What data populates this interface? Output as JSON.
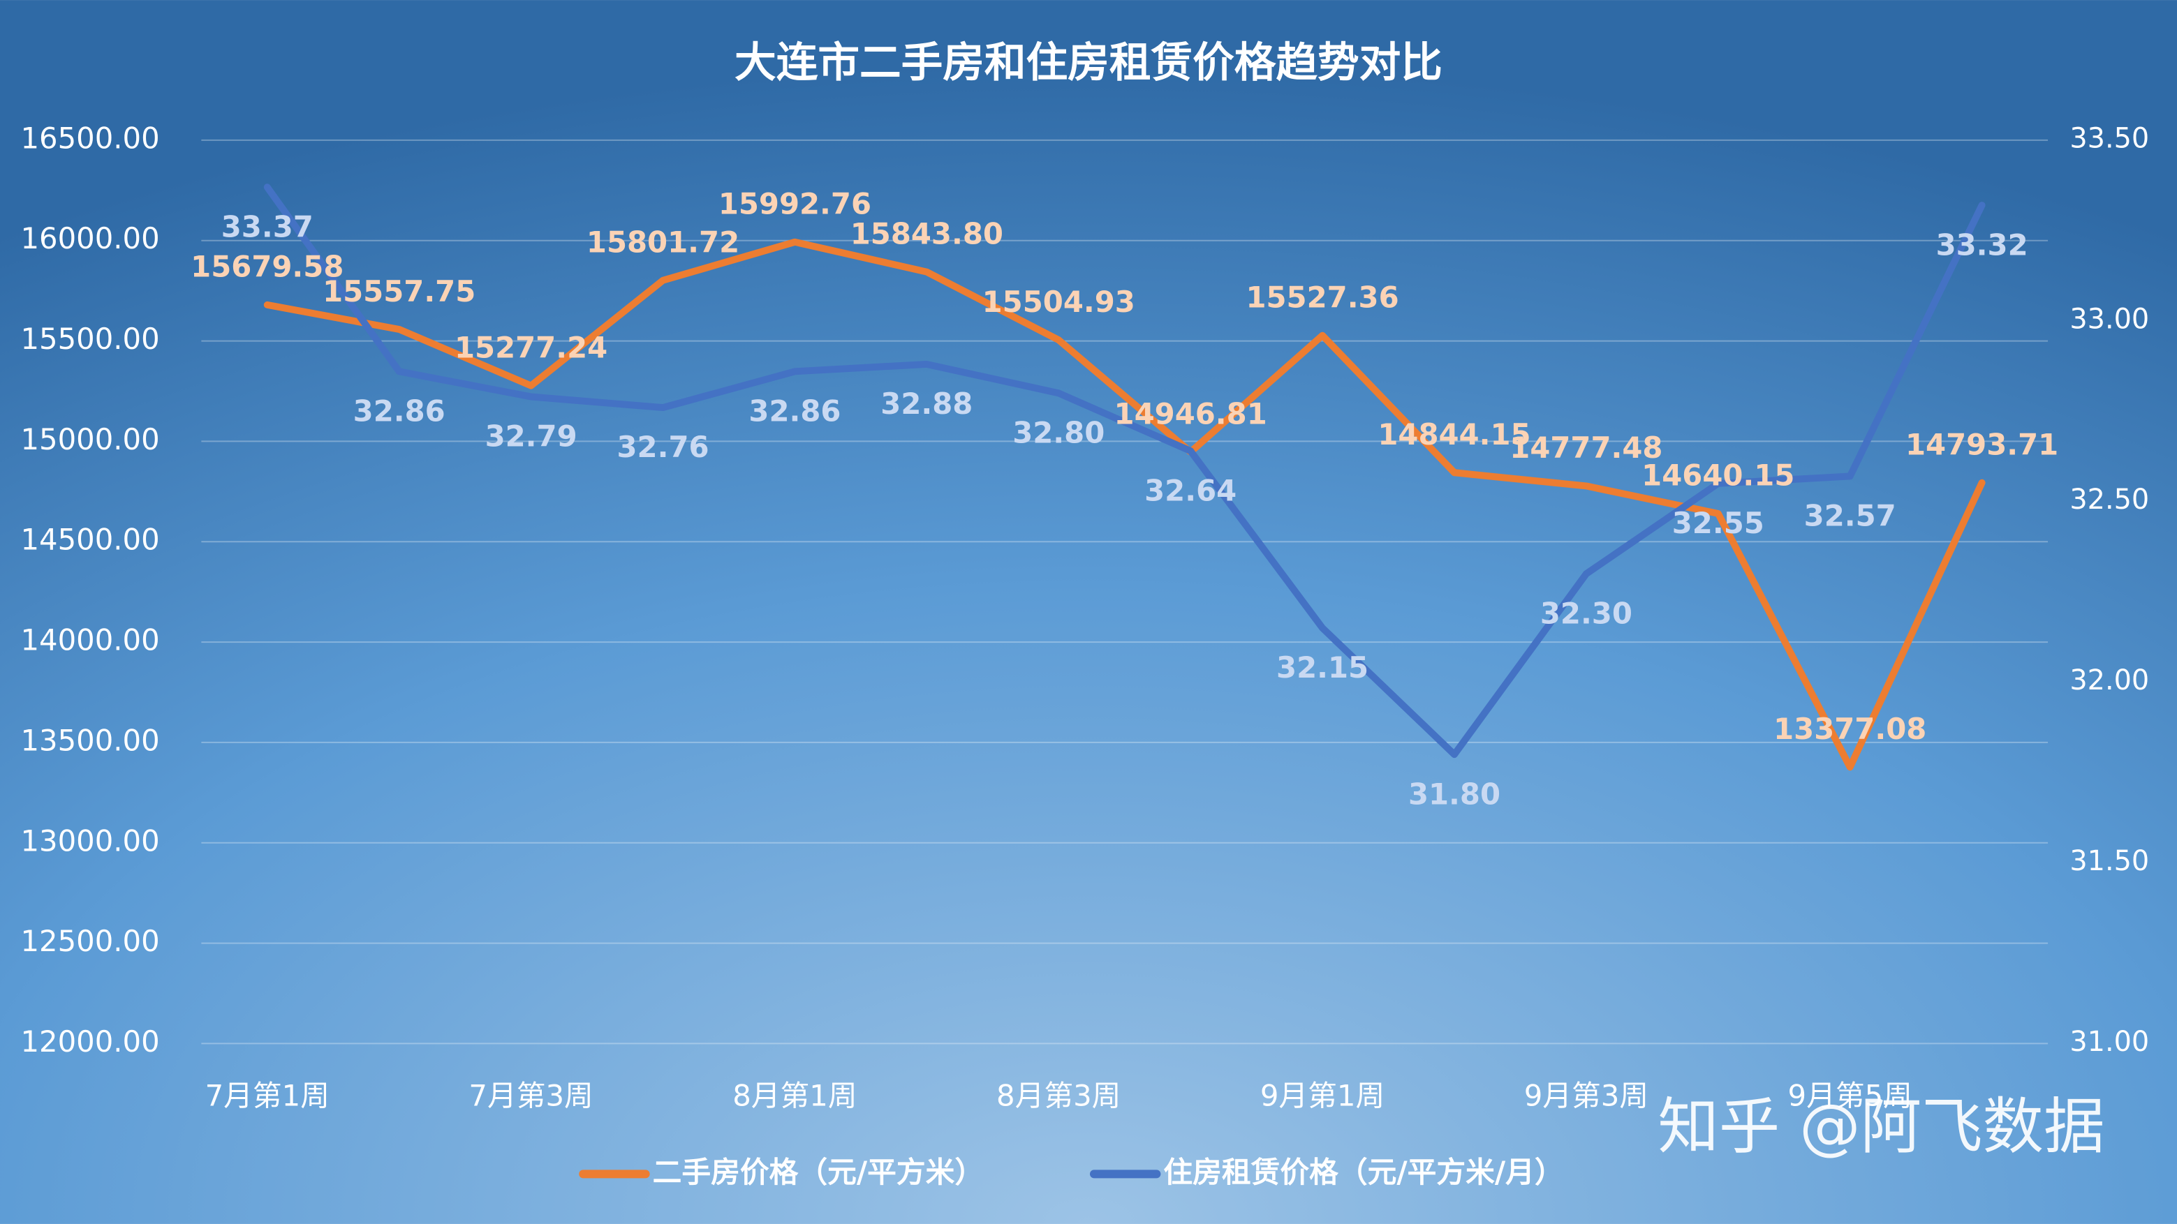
{
  "chart_data": {
    "type": "line",
    "title": "大连市二手房和住房租赁价格趋势对比",
    "watermark": "知乎 @阿飞数据",
    "categories": [
      "7月第1周",
      null,
      "7月第3周",
      null,
      "8月第1周",
      null,
      "8月第3周",
      null,
      "9月第1周",
      null,
      "9月第3周",
      null,
      "9月第5周",
      null
    ],
    "series": [
      {
        "name": "二手房价格（元/平方米）",
        "color": "#ed7d31",
        "axis": "y",
        "values": [
          15679.58,
          15557.75,
          15277.24,
          15801.72,
          15992.76,
          15843.8,
          15504.93,
          14946.81,
          15527.36,
          14844.15,
          14777.48,
          14640.15,
          13377.08,
          14793.71
        ],
        "value_labels": [
          "15679.58",
          "15557.75",
          "15277.24",
          "15801.72",
          "15992.76",
          "15843.80",
          "15504.93",
          "14946.81",
          "15527.36",
          "14844.15",
          "14777.48",
          "14640.15",
          "13377.08",
          "14793.71"
        ]
      },
      {
        "name": "住房租赁价格（元/平方米/月）",
        "color": "#4472c4",
        "axis": "y2",
        "values": [
          33.37,
          32.86,
          32.79,
          32.76,
          32.86,
          32.88,
          32.8,
          32.64,
          32.15,
          31.8,
          32.3,
          32.55,
          32.57,
          33.32
        ],
        "value_labels": [
          "33.37",
          "32.86",
          "32.79",
          "32.76",
          "32.86",
          "32.88",
          "32.80",
          "32.64",
          "32.15",
          "31.80",
          "32.30",
          "32.55",
          "32.57",
          "33.32"
        ]
      }
    ],
    "ylim": [
      12000,
      16500
    ],
    "yticks": [
      {
        "value": 12000,
        "label": "12000.00"
      },
      {
        "value": 12500,
        "label": "12500.00"
      },
      {
        "value": 13000,
        "label": "13000.00"
      },
      {
        "value": 13500,
        "label": "13500.00"
      },
      {
        "value": 14000,
        "label": "14000.00"
      },
      {
        "value": 14500,
        "label": "14500.00"
      },
      {
        "value": 15000,
        "label": "15000.00"
      },
      {
        "value": 15500,
        "label": "15500.00"
      },
      {
        "value": 16000,
        "label": "16000.00"
      },
      {
        "value": 16500,
        "label": "16500.00"
      }
    ],
    "y2lim": [
      31,
      33.5
    ],
    "y2ticks": [
      {
        "value": 31,
        "label": "31.00"
      },
      {
        "value": 31.5,
        "label": "31.50"
      },
      {
        "value": 32,
        "label": "32.00"
      },
      {
        "value": 32.5,
        "label": "32.50"
      },
      {
        "value": 33,
        "label": "33.00"
      },
      {
        "value": 33.5,
        "label": "33.50"
      }
    ],
    "grid": true,
    "legend": "bottom"
  }
}
